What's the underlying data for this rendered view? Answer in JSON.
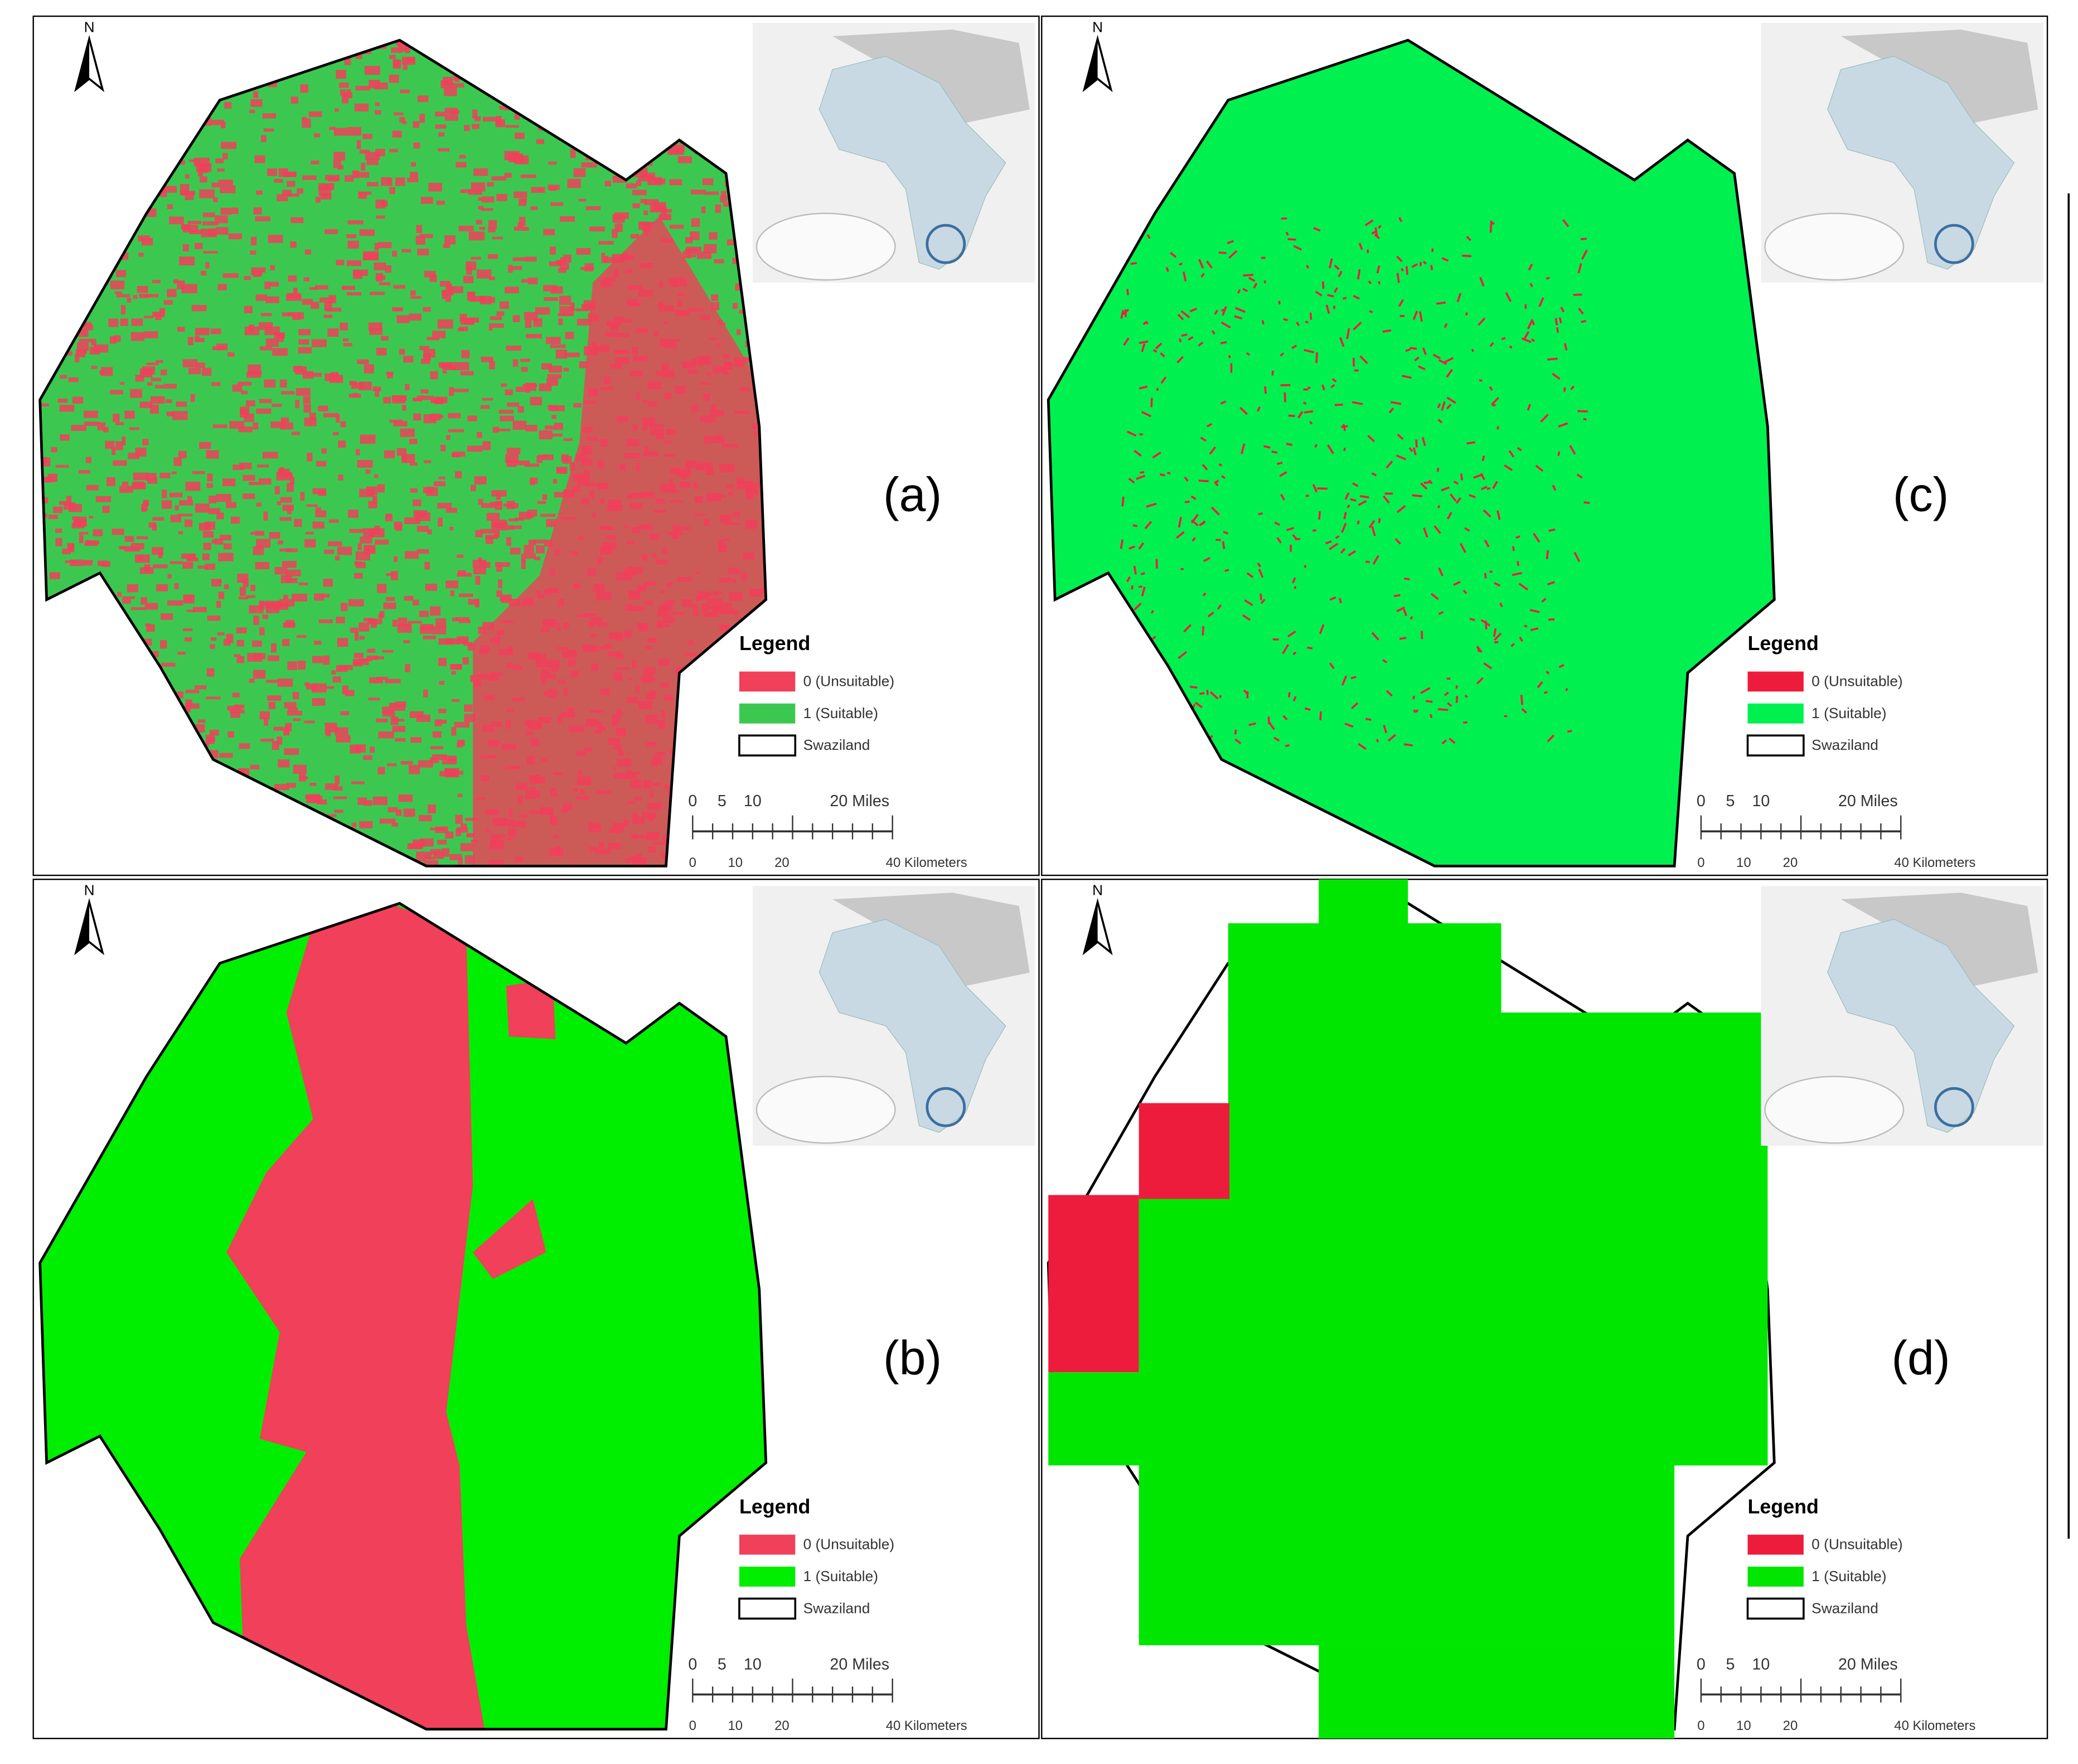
{
  "panels": [
    {
      "label": "(a)",
      "north": "N",
      "legend": {
        "title": "Legend",
        "items": [
          "0 (Unsuitable)",
          "1 (Suitable)",
          "Swaziland"
        ]
      },
      "scale": {
        "miles": [
          "0",
          "5",
          "10",
          "20 Miles"
        ],
        "km": [
          "0",
          "10",
          "20",
          "40 Kilometers"
        ]
      }
    },
    {
      "label": "(b)",
      "north": "N",
      "legend": {
        "title": "Legend",
        "items": [
          "0 (Unsuitable)",
          "1 (Suitable)",
          "Swaziland"
        ]
      },
      "scale": {
        "miles": [
          "0",
          "5",
          "10",
          "20 Miles"
        ],
        "km": [
          "0",
          "10",
          "20",
          "40 Kilometers"
        ]
      }
    },
    {
      "label": "(c)",
      "north": "N",
      "legend": {
        "title": "Legend",
        "items": [
          "0 (Unsuitable)",
          "1 (Suitable)",
          "Swaziland"
        ]
      },
      "scale": {
        "miles": [
          "0",
          "5",
          "10",
          "20 Miles"
        ],
        "km": [
          "0",
          "10",
          "20",
          "40 Kilometers"
        ]
      }
    },
    {
      "label": "(d)",
      "north": "N",
      "legend": {
        "title": "Legend",
        "items": [
          "0 (Unsuitable)",
          "1 (Suitable)",
          "Swaziland"
        ]
      },
      "scale": {
        "miles": [
          "0",
          "5",
          "10",
          "20 Miles"
        ],
        "km": [
          "0",
          "10",
          "20",
          "40 Kilometers"
        ]
      }
    }
  ]
}
